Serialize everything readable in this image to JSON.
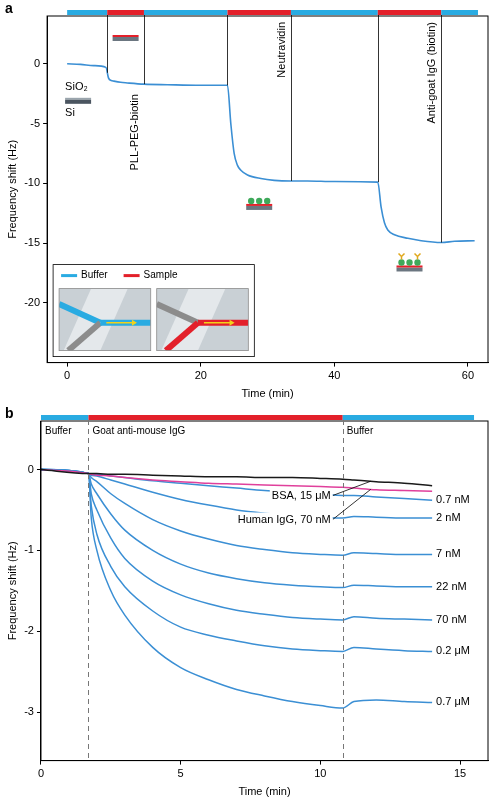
{
  "chart_data": [
    {
      "panel": "a",
      "type": "line",
      "x_label": "Time (min)",
      "y_label": "Frequency shift (Hz)",
      "xlim": [
        -3,
        63
      ],
      "xticks": [
        0,
        20,
        40,
        60
      ],
      "ylim": [
        -25,
        4
      ],
      "yticks": [
        -20,
        -15,
        -10,
        -5,
        0
      ],
      "grid": false,
      "color": "#3b8fd4",
      "x": [
        0,
        2,
        4,
        5.8,
        6.2,
        6.6,
        7,
        8,
        9,
        11.5,
        15,
        20,
        24,
        24.5,
        25,
        25.5,
        26,
        27,
        29,
        31,
        33.5,
        36,
        40,
        46.5,
        47,
        47.5,
        48,
        49,
        51,
        53,
        56,
        58,
        61
      ],
      "values": [
        0,
        -0.05,
        -0.15,
        -0.3,
        -1.2,
        -1.4,
        -1.45,
        -1.55,
        -1.6,
        -1.7,
        -1.75,
        -1.8,
        -1.8,
        -5,
        -7.5,
        -8.5,
        -8.9,
        -9.3,
        -9.6,
        -9.75,
        -9.8,
        -9.8,
        -9.85,
        -9.9,
        -12,
        -13.3,
        -13.9,
        -14.3,
        -14.6,
        -14.8,
        -14.95,
        -14.85,
        -14.8
      ],
      "phase_key": [
        {
          "name": "Buffer",
          "color": "#29abe2"
        },
        {
          "name": "Sample",
          "color": "#e3202a"
        }
      ],
      "phases": [
        {
          "kind": "Buffer",
          "start": 0,
          "end": 6
        },
        {
          "kind": "Sample",
          "start": 6,
          "end": 11.5,
          "label": "PLL-PEG-biotin"
        },
        {
          "kind": "Buffer",
          "start": 11.5,
          "end": 24
        },
        {
          "kind": "Sample",
          "start": 24,
          "end": 33.5,
          "label": "Neutravidin"
        },
        {
          "kind": "Buffer",
          "start": 33.5,
          "end": 46.5
        },
        {
          "kind": "Sample",
          "start": 46.5,
          "end": 56,
          "label": "Anti-goat IgG (biotin)"
        },
        {
          "kind": "Buffer",
          "start": 56,
          "end": 61.5
        }
      ],
      "substrate": {
        "layer": "SiO₂",
        "base": "Si"
      }
    },
    {
      "panel": "b",
      "type": "line",
      "x_label": "Time (min)",
      "y_label": "Frequency shift (Hz)",
      "xlim": [
        0,
        16
      ],
      "xticks": [
        0,
        5,
        10,
        15
      ],
      "ylim": [
        -3.6,
        0.6
      ],
      "yticks": [
        -3,
        -2,
        -1,
        0
      ],
      "grid": false,
      "phases": [
        {
          "name": "Buffer",
          "start": 0,
          "end": 1.7,
          "color": "#29abe2"
        },
        {
          "name": "Goat anti-mouse IgG",
          "start": 1.7,
          "end": 10.8,
          "color": "#e3202a"
        },
        {
          "name": "Buffer",
          "start": 10.8,
          "end": 15.5,
          "color": "#29abe2"
        }
      ],
      "x": [
        0,
        1.7,
        1.8,
        2,
        2.5,
        3,
        4,
        5,
        6,
        7,
        8,
        9,
        10,
        10.8,
        11.2,
        12,
        13,
        14
      ],
      "series": [
        {
          "name": "BSA, 15 μM",
          "color": "#1a1a1a",
          "values": [
            0,
            -0.05,
            -0.05,
            -0.05,
            -0.06,
            -0.06,
            -0.07,
            -0.08,
            -0.09,
            -0.09,
            -0.1,
            -0.1,
            -0.11,
            -0.12,
            -0.13,
            -0.15,
            -0.17,
            -0.2
          ]
        },
        {
          "name": "Human IgG, 70 nM",
          "color": "#e0409c",
          "values": [
            0,
            -0.05,
            -0.06,
            -0.07,
            -0.08,
            -0.1,
            -0.13,
            -0.15,
            -0.17,
            -0.18,
            -0.19,
            -0.2,
            -0.21,
            -0.22,
            -0.23,
            -0.25,
            -0.26,
            -0.27
          ]
        },
        {
          "name": "0.7 nM",
          "color": "#3b8fd4",
          "values": [
            0,
            -0.05,
            -0.06,
            -0.06,
            -0.08,
            -0.1,
            -0.14,
            -0.17,
            -0.2,
            -0.23,
            -0.26,
            -0.28,
            -0.3,
            -0.32,
            -0.32,
            -0.34,
            -0.36,
            -0.38
          ]
        },
        {
          "name": "2 nM",
          "color": "#3b8fd4",
          "values": [
            0,
            -0.05,
            -0.07,
            -0.08,
            -0.13,
            -0.18,
            -0.28,
            -0.37,
            -0.44,
            -0.5,
            -0.54,
            -0.57,
            -0.59,
            -0.6,
            -0.58,
            -0.59,
            -0.6,
            -0.6
          ]
        },
        {
          "name": "7 nM",
          "color": "#3b8fd4",
          "values": [
            0,
            -0.05,
            -0.1,
            -0.15,
            -0.3,
            -0.42,
            -0.62,
            -0.76,
            -0.86,
            -0.94,
            -0.99,
            -1.03,
            -1.05,
            -1.06,
            -1.03,
            -1.04,
            -1.05,
            -1.05
          ]
        },
        {
          "name": "22 nM",
          "color": "#3b8fd4",
          "values": [
            0,
            -0.05,
            -0.18,
            -0.3,
            -0.55,
            -0.75,
            -1.0,
            -1.17,
            -1.28,
            -1.35,
            -1.4,
            -1.43,
            -1.45,
            -1.46,
            -1.43,
            -1.44,
            -1.45,
            -1.45
          ]
        },
        {
          "name": "70 nM",
          "color": "#3b8fd4",
          "values": [
            0,
            -0.05,
            -0.3,
            -0.5,
            -0.85,
            -1.1,
            -1.38,
            -1.55,
            -1.66,
            -1.74,
            -1.79,
            -1.83,
            -1.85,
            -1.86,
            -1.82,
            -1.84,
            -1.85,
            -1.86
          ]
        },
        {
          "name": "0.2 μM",
          "color": "#3b8fd4",
          "values": [
            0,
            -0.05,
            -0.45,
            -0.8,
            -1.2,
            -1.45,
            -1.75,
            -1.95,
            -2.05,
            -2.12,
            -2.18,
            -2.22,
            -2.24,
            -2.25,
            -2.2,
            -2.22,
            -2.24,
            -2.25
          ]
        },
        {
          "name": "0.7 μM",
          "color": "#3b8fd4",
          "values": [
            0,
            -0.05,
            -0.6,
            -1.0,
            -1.5,
            -1.8,
            -2.2,
            -2.45,
            -2.6,
            -2.72,
            -2.8,
            -2.87,
            -2.92,
            -2.95,
            -2.87,
            -2.85,
            -2.87,
            -2.88
          ]
        }
      ]
    }
  ]
}
